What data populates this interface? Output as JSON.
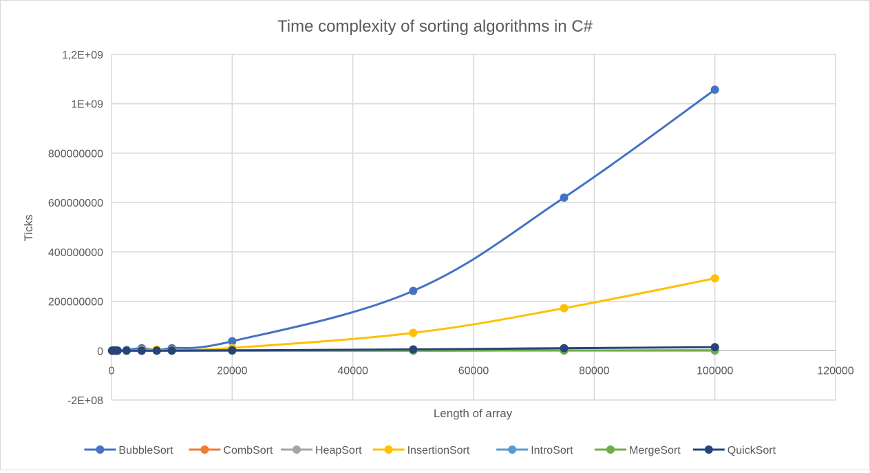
{
  "chart_data": {
    "type": "scatter",
    "title": "Time complexity of sorting algorithms in C#",
    "xlabel": "Length of array",
    "ylabel": "Ticks",
    "xlim": [
      0,
      120000
    ],
    "ylim": [
      -200000000,
      1200000000
    ],
    "x_ticks": [
      0,
      20000,
      40000,
      60000,
      80000,
      100000,
      120000
    ],
    "x_tick_labels": [
      "0",
      "20000",
      "40000",
      "60000",
      "80000",
      "100000",
      "120000"
    ],
    "y_ticks": [
      -200000000,
      0,
      200000000,
      400000000,
      600000000,
      800000000,
      1000000000,
      1200000000
    ],
    "y_tick_labels": [
      "-2E+08",
      "0",
      "200000000",
      "400000000",
      "600000000",
      "800000000",
      "1E+09",
      "1,2E+09"
    ],
    "grid": true,
    "smooth_lines": true,
    "legend_position": "bottom",
    "x": [
      100,
      250,
      500,
      750,
      1000,
      2500,
      5000,
      7500,
      10000,
      20000,
      50000,
      75000,
      100000
    ],
    "series": [
      {
        "name": "BubbleSort",
        "color": "#4472c4",
        "values": [
          5000,
          30000,
          110000,
          250000,
          450000,
          2600000,
          10000000,
          3000000,
          10000000,
          38000000,
          242000000,
          620000000,
          1057000000
        ]
      },
      {
        "name": "CombSort",
        "color": "#ed7d31",
        "values": [
          500,
          1200,
          2500,
          4000,
          6000,
          16000,
          35000,
          55000,
          80000,
          170000,
          480000,
          740000,
          1000000
        ]
      },
      {
        "name": "HeapSort",
        "color": "#a5a5a5",
        "values": [
          600,
          1500,
          3000,
          5000,
          7000,
          19000,
          42000,
          65000,
          90000,
          190000,
          520000,
          800000,
          1100000
        ]
      },
      {
        "name": "InsertionSort",
        "color": "#ffc000",
        "values": [
          1500,
          9000,
          30000,
          70000,
          120000,
          700000,
          2800000,
          4000000,
          2500000,
          11000000,
          72000000,
          172000000,
          293000000
        ]
      },
      {
        "name": "IntroSort",
        "color": "#5b9bd5",
        "values": [
          300,
          800,
          1600,
          2500,
          3500,
          9000,
          20000,
          31000,
          43000,
          90000,
          250000,
          390000,
          530000
        ]
      },
      {
        "name": "MergeSort",
        "color": "#70ad47",
        "values": [
          700,
          1800,
          3600,
          5500,
          7500,
          20000,
          43000,
          66000,
          92000,
          200000,
          560000,
          880000,
          1200000
        ]
      },
      {
        "name": "QuickSort",
        "color": "#264478",
        "values": [
          200,
          600,
          1500,
          3000,
          5000,
          25000,
          90000,
          200000,
          350000,
          1400000,
          5000000,
          10000000,
          14000000
        ]
      }
    ]
  },
  "colors": {
    "title": "#595959",
    "axis_text": "#595959",
    "grid": "#d9d9d9",
    "zero_line": "#bfbfbf",
    "background": "#ffffff"
  }
}
